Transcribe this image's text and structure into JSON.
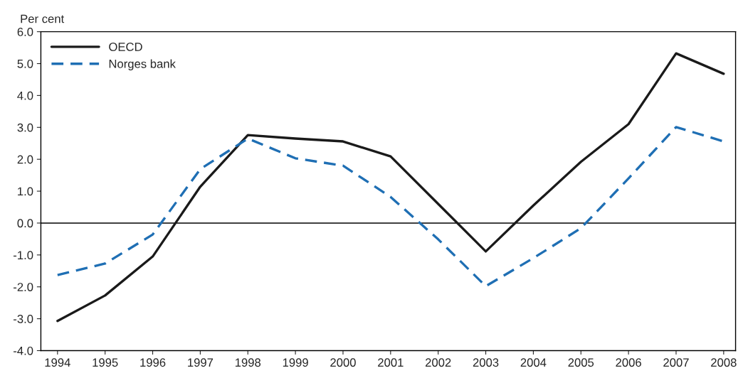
{
  "chart_data": {
    "type": "line",
    "ylabel": "Per cent",
    "categories": [
      "1994",
      "1995",
      "1996",
      "1997",
      "1998",
      "1999",
      "2000",
      "2001",
      "2002",
      "2003",
      "2004",
      "2005",
      "2006",
      "2007",
      "2008"
    ],
    "series": [
      {
        "name": "OECD",
        "color": "#1a1a1a",
        "line_style": "solid",
        "values": [
          -3.07,
          -2.27,
          -1.05,
          1.14,
          2.76,
          2.65,
          2.56,
          2.09,
          0.6,
          -0.89,
          0.55,
          1.92,
          3.1,
          5.32,
          4.68
        ]
      },
      {
        "name": "Norges bank",
        "color": "#1f6fb4",
        "line_style": "dashed",
        "values": [
          -1.63,
          -1.27,
          -0.36,
          1.69,
          2.65,
          2.03,
          1.8,
          0.82,
          -0.51,
          -1.98,
          -1.1,
          -0.16,
          1.4,
          3.01,
          2.56
        ]
      }
    ],
    "ylim": [
      -4,
      6
    ],
    "yticks": [
      {
        "value": -4,
        "label": "-4.0"
      },
      {
        "value": -3,
        "label": "-3.0"
      },
      {
        "value": -2,
        "label": "-2.0"
      },
      {
        "value": -1,
        "label": "-1.0"
      },
      {
        "value": 0,
        "label": "0.0"
      },
      {
        "value": 1,
        "label": "1.0"
      },
      {
        "value": 2,
        "label": "2.0"
      },
      {
        "value": 3,
        "label": "3.0"
      },
      {
        "value": 4,
        "label": "4.0"
      },
      {
        "value": 5,
        "label": "5.0"
      },
      {
        "value": 6,
        "label": "6.0"
      }
    ],
    "ref_lines": [
      {
        "axis": "y",
        "value": 0,
        "color": "#000000"
      }
    ],
    "grid": false,
    "legend": "top left",
    "marker": "none"
  }
}
